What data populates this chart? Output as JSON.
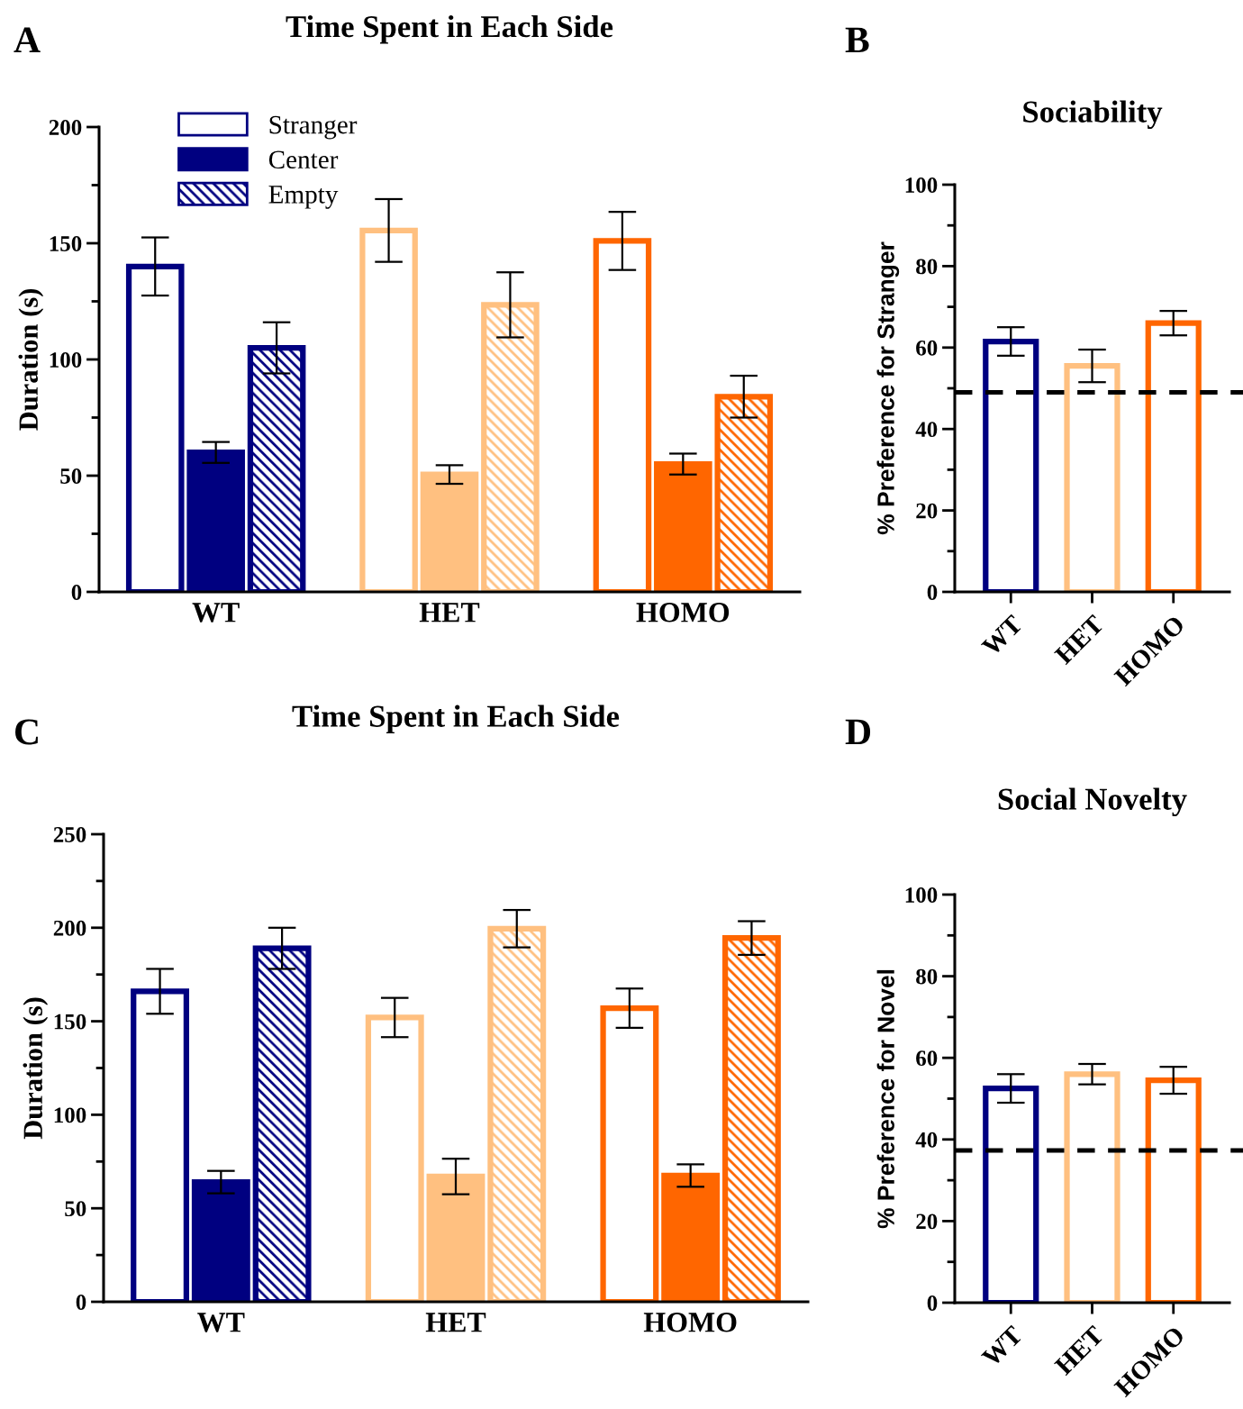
{
  "chart_data": [
    {
      "type": "bar",
      "title": "Time Spent in Each Side",
      "ylabel": "Duration (s)",
      "annotations": [
        "A"
      ],
      "legend": "top left",
      "categories": [
        "WT",
        "HET",
        "HOMO"
      ],
      "series": [
        {
          "name": "Stranger",
          "colors": [
            "#000080",
            "#ffc080",
            "#ff6600"
          ],
          "values": [
            140,
            155.5,
            151
          ],
          "errors": [
            12.5,
            13.5,
            12.5
          ]
        },
        {
          "name": "Center",
          "colors": [
            "#000080",
            "#ffc080",
            "#ff6600"
          ],
          "values": [
            60,
            50.5,
            55
          ],
          "errors": [
            4.5,
            4,
            4.5
          ]
        },
        {
          "name": "Empty",
          "colors": [
            "#000080",
            "#ffc080",
            "#ff6600"
          ],
          "values": [
            105,
            123.5,
            84
          ],
          "errors": [
            11,
            14,
            9
          ]
        }
      ],
      "ylim": [
        0,
        200
      ],
      "yticks": [
        0,
        {
          "value": 25,
          "label": null
        },
        50,
        {
          "value": 75,
          "label": null
        },
        100,
        {
          "value": 125,
          "label": null
        },
        150,
        {
          "value": 175,
          "label": null
        },
        200
      ]
    },
    {
      "type": "bar",
      "title": "Sociability",
      "ylabel": "% Preference for Stranger",
      "annotations": [
        "B"
      ],
      "categories": [
        "WT",
        "HET",
        "HOMO"
      ],
      "series": [
        {
          "colors": [
            "#000080",
            "#ffc080",
            "#ff6600"
          ],
          "values": [
            61.5,
            55.5,
            66
          ],
          "errors": [
            3.5,
            4,
            3
          ]
        }
      ],
      "ylim": [
        0,
        100
      ],
      "yticks": [
        0,
        {
          "value": 10,
          "label": null
        },
        20,
        {
          "value": 30,
          "label": null
        },
        40,
        {
          "value": 50,
          "label": null
        },
        60,
        {
          "value": 70,
          "label": null
        },
        80,
        {
          "value": 90,
          "label": null
        },
        100
      ],
      "ref_lines": [
        {
          "axis": "y",
          "value": 49,
          "line_style": "dashed",
          "color": "#000000"
        }
      ]
    },
    {
      "type": "bar",
      "title": "Time Spent in Each Side",
      "ylabel": "Duration (s)",
      "annotations": [
        "C"
      ],
      "categories": [
        "WT",
        "HET",
        "HOMO"
      ],
      "series": [
        {
          "colors": [
            "#000080",
            "#ffc080",
            "#ff6600"
          ],
          "values": [
            166,
            152,
            157
          ],
          "errors": [
            12,
            10.5,
            10.5
          ]
        },
        {
          "colors": [
            "#000080",
            "#ffc080",
            "#ff6600"
          ],
          "values": [
            64,
            67,
            67.5
          ],
          "errors": [
            6,
            9.5,
            6
          ]
        },
        {
          "colors": [
            "#000080",
            "#ffc080",
            "#ff6600"
          ],
          "values": [
            189,
            199.5,
            194.5
          ],
          "errors": [
            11,
            10,
            9
          ]
        }
      ],
      "ylim": [
        0,
        250
      ],
      "yticks": [
        0,
        {
          "value": 25,
          "label": null
        },
        50,
        {
          "value": 75,
          "label": null
        },
        100,
        {
          "value": 125,
          "label": null
        },
        150,
        {
          "value": 175,
          "label": null
        },
        200,
        {
          "value": 225,
          "label": null
        },
        250
      ]
    },
    {
      "type": "bar",
      "title": "Social Novelty",
      "ylabel": "% Preference for Novel",
      "annotations": [
        "D"
      ],
      "categories": [
        "WT",
        "HET",
        "HOMO"
      ],
      "series": [
        {
          "colors": [
            "#000080",
            "#ffc080",
            "#ff6600"
          ],
          "values": [
            52.5,
            56,
            54.5
          ],
          "errors": [
            3.5,
            2.5,
            3.3
          ]
        }
      ],
      "ylim": [
        0,
        100
      ],
      "yticks": [
        0,
        {
          "value": 10,
          "label": null
        },
        20,
        {
          "value": 30,
          "label": null
        },
        40,
        {
          "value": 50,
          "label": null
        },
        60,
        {
          "value": 70,
          "label": null
        },
        80,
        {
          "value": 90,
          "label": null
        },
        100
      ],
      "ref_lines": [
        {
          "axis": "y",
          "value": 37.3,
          "line_style": "dashed",
          "color": "#000000"
        }
      ]
    }
  ]
}
